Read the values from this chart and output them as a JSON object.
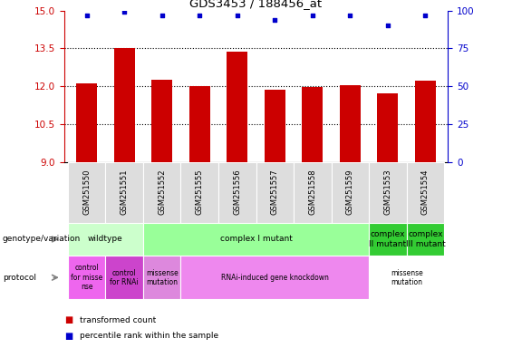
{
  "title": "GDS3453 / 188456_at",
  "samples": [
    "GSM251550",
    "GSM251551",
    "GSM251552",
    "GSM251555",
    "GSM251556",
    "GSM251557",
    "GSM251558",
    "GSM251559",
    "GSM251553",
    "GSM251554"
  ],
  "bar_values": [
    12.1,
    13.5,
    12.25,
    12.0,
    13.35,
    11.85,
    11.95,
    12.05,
    11.7,
    12.2
  ],
  "percentile_values": [
    97,
    99,
    97,
    97,
    97,
    94,
    97,
    97,
    90,
    97
  ],
  "ylim_left": [
    9,
    15
  ],
  "ylim_right": [
    0,
    100
  ],
  "yticks_left": [
    9,
    10.5,
    12,
    13.5,
    15
  ],
  "yticks_right": [
    0,
    25,
    50,
    75,
    100
  ],
  "bar_color": "#cc0000",
  "dot_color": "#0000cc",
  "bar_width": 0.55,
  "left_axis_color": "#cc0000",
  "right_axis_color": "#0000cc",
  "gridlines": [
    10.5,
    12,
    13.5
  ],
  "geno_data": [
    [
      0,
      2,
      "#ccffcc",
      "wildtype"
    ],
    [
      2,
      8,
      "#99ff99",
      "complex I mutant"
    ],
    [
      8,
      9,
      "#33cc33",
      "complex\nII mutant"
    ],
    [
      9,
      10,
      "#33cc33",
      "complex\nIII mutant"
    ]
  ],
  "prot_data": [
    [
      0,
      1,
      "#ee66ee",
      "control\nfor misse\nnse"
    ],
    [
      1,
      2,
      "#cc44cc",
      "control\nfor RNAi"
    ],
    [
      2,
      3,
      "#dd88dd",
      "missense\nmutation"
    ],
    [
      3,
      8,
      "#ee88ee",
      "RNAi-induced gene knockdown"
    ],
    [
      8,
      10,
      "#ffffff",
      "missense\nmutation"
    ]
  ],
  "sample_bg": "#dddddd",
  "fig_width": 5.65,
  "fig_height": 3.84,
  "dpi": 100
}
